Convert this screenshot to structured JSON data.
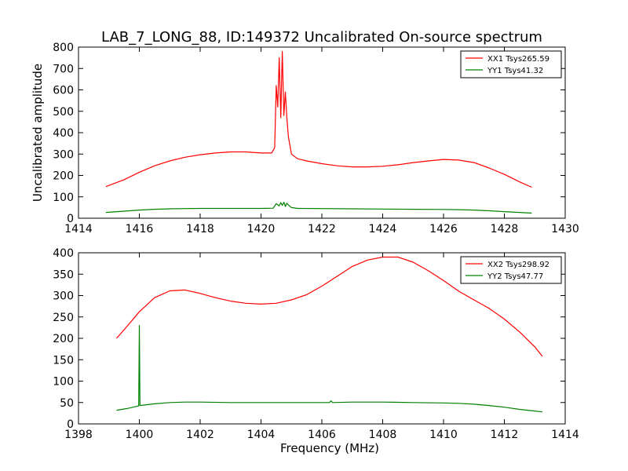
{
  "figure": {
    "title": "LAB_7_LONG_88, ID:149372 Uncalibrated On-source spectrum"
  },
  "chart_data": [
    {
      "type": "line",
      "ylabel": "Uncalibrated amplitude",
      "xlabel": "",
      "xlim": [
        1414,
        1430
      ],
      "ylim": [
        0,
        800
      ],
      "xticks": [
        1414,
        1416,
        1418,
        1420,
        1422,
        1424,
        1426,
        1428,
        1430
      ],
      "yticks": [
        0,
        100,
        200,
        300,
        400,
        500,
        600,
        700,
        800
      ],
      "legend_position": "upper-right",
      "grid": false,
      "series": [
        {
          "name": "XX1 Tsys265.59",
          "color": "#ff0000",
          "x": [
            1414.9,
            1415.5,
            1416.0,
            1416.5,
            1417.0,
            1417.5,
            1418.0,
            1418.5,
            1419.0,
            1419.5,
            1420.0,
            1420.35,
            1420.45,
            1420.5,
            1420.55,
            1420.6,
            1420.65,
            1420.7,
            1420.75,
            1420.8,
            1420.85,
            1420.9,
            1421.0,
            1421.2,
            1421.5,
            1422.0,
            1422.5,
            1423.0,
            1423.5,
            1424.0,
            1424.5,
            1425.0,
            1425.5,
            1426.0,
            1426.5,
            1427.0,
            1427.5,
            1428.0,
            1428.5,
            1428.9
          ],
          "y": [
            148,
            180,
            215,
            245,
            268,
            285,
            297,
            305,
            310,
            310,
            305,
            305,
            330,
            620,
            520,
            750,
            470,
            780,
            480,
            590,
            470,
            380,
            300,
            278,
            268,
            255,
            245,
            240,
            240,
            243,
            250,
            260,
            268,
            275,
            272,
            260,
            235,
            205,
            170,
            145
          ]
        },
        {
          "name": "YY1 Tsys41.32",
          "color": "#008000",
          "x": [
            1414.9,
            1415.5,
            1416.0,
            1416.5,
            1417.0,
            1417.5,
            1418.0,
            1419.0,
            1420.0,
            1420.4,
            1420.5,
            1420.6,
            1420.65,
            1420.7,
            1420.75,
            1420.8,
            1420.85,
            1420.9,
            1421.0,
            1421.2,
            1422.0,
            1423.0,
            1424.0,
            1425.0,
            1426.0,
            1426.5,
            1427.0,
            1427.5,
            1428.0,
            1428.5,
            1428.9
          ],
          "y": [
            27,
            33,
            38,
            42,
            44,
            45,
            46,
            46,
            46,
            47,
            68,
            58,
            73,
            60,
            75,
            55,
            70,
            62,
            50,
            46,
            45,
            44,
            43,
            42,
            41,
            40,
            38,
            35,
            31,
            27,
            24
          ]
        }
      ]
    },
    {
      "type": "line",
      "ylabel": "",
      "xlabel": "Frequency (MHz)",
      "xlim": [
        1398,
        1414
      ],
      "ylim": [
        0,
        400
      ],
      "xticks": [
        1398,
        1400,
        1402,
        1404,
        1406,
        1408,
        1410,
        1412,
        1414
      ],
      "yticks": [
        0,
        50,
        100,
        150,
        200,
        250,
        300,
        350,
        400
      ],
      "legend_position": "upper-right",
      "grid": false,
      "series": [
        {
          "name": "XX2 Tsys298.92",
          "color": "#ff0000",
          "x": [
            1399.25,
            1399.5,
            1400.0,
            1400.5,
            1401.0,
            1401.5,
            1402.0,
            1402.5,
            1403.0,
            1403.5,
            1404.0,
            1404.5,
            1405.0,
            1405.5,
            1406.0,
            1406.5,
            1407.0,
            1407.5,
            1408.0,
            1408.5,
            1409.0,
            1409.5,
            1410.0,
            1410.5,
            1411.0,
            1411.5,
            1412.0,
            1412.5,
            1413.0,
            1413.25
          ],
          "y": [
            200,
            220,
            262,
            295,
            311,
            313,
            305,
            295,
            287,
            282,
            280,
            282,
            290,
            302,
            322,
            345,
            368,
            383,
            390,
            390,
            378,
            358,
            335,
            310,
            290,
            270,
            245,
            215,
            180,
            158
          ]
        },
        {
          "name": "YY2 Tsys47.77",
          "color": "#008000",
          "x": [
            1399.25,
            1399.6,
            1399.98,
            1400.0,
            1400.02,
            1400.5,
            1401.0,
            1401.5,
            1402.0,
            1403.0,
            1404.0,
            1405.0,
            1406.0,
            1406.25,
            1406.3,
            1406.35,
            1407.0,
            1408.0,
            1409.0,
            1410.0,
            1410.5,
            1411.0,
            1411.5,
            1412.0,
            1412.5,
            1413.0,
            1413.25
          ],
          "y": [
            32,
            36,
            42,
            230,
            43,
            47,
            50,
            51,
            51,
            50,
            50,
            50,
            50,
            50,
            54,
            50,
            51,
            51,
            50,
            49,
            48,
            46,
            43,
            39,
            34,
            30,
            28
          ]
        }
      ]
    }
  ]
}
